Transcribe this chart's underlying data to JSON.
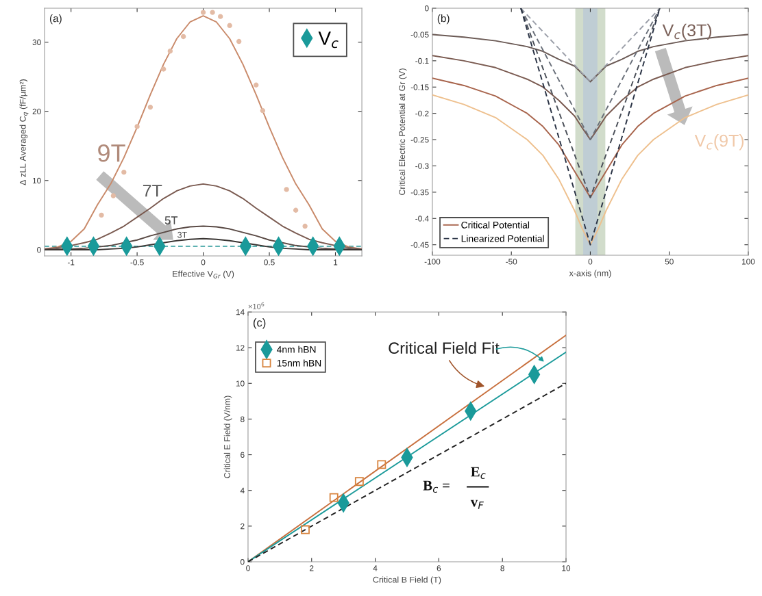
{
  "chart_data": [
    {
      "type": "line",
      "xlabel": "Effective V$_{Gr}$ (V)",
      "ylabel": "Δ zLL Averaged C$_{q}$ (fF/μm²)",
      "xlim": [
        -1.2,
        1.2
      ],
      "ylim": [
        -0.9,
        34.9
      ],
      "xticks": [
        -1,
        -0.5,
        0,
        0.5,
        1
      ],
      "yticks": [
        0,
        10,
        20,
        30
      ],
      "grid": false,
      "legend": "top right",
      "annotations": [
        "(a)",
        "9T",
        "7T",
        "5T",
        "3T"
      ],
      "ref_lines": [
        {
          "axis": "y",
          "value": 0.5,
          "label": null,
          "color": "#3aa0a0",
          "line_style": "dashed"
        }
      ],
      "series": [
        {
          "type": "scatter",
          "color": "#e3bba5",
          "marker": "circle",
          "x": [
            -0.77,
            -0.68,
            -0.6,
            -0.5,
            -0.4,
            -0.3,
            -0.25,
            -0.15,
            0,
            0.07,
            0.13,
            0.2,
            0.27,
            0.4,
            0.45,
            0.63,
            0.7,
            0.77
          ],
          "values": [
            5.0,
            7.8,
            11.2,
            17.8,
            20.6,
            26.1,
            28.7,
            30.8,
            34.3,
            34.3,
            33.7,
            32.4,
            30.1,
            23.8,
            20.1,
            8.7,
            5.7,
            3.4
          ]
        },
        {
          "type": "line",
          "color": "#c98a6a",
          "marker": "none",
          "x": [
            -1.2,
            -1.1,
            -1.0,
            -0.9,
            -0.8,
            -0.7,
            -0.6,
            -0.5,
            -0.4,
            -0.3,
            -0.2,
            -0.1,
            0,
            0.1,
            0.2,
            0.3,
            0.4,
            0.5,
            0.6,
            0.7,
            0.8,
            0.9,
            1.0,
            1.1,
            1.2
          ],
          "values": [
            0.1,
            0.4,
            1.2,
            3.0,
            6.5,
            9.5,
            13.3,
            17.7,
            22.4,
            26.8,
            30.5,
            32.9,
            33.8,
            32.9,
            30.5,
            26.8,
            22.4,
            17.7,
            13.3,
            9.5,
            6.5,
            3.0,
            1.2,
            0.4,
            0.1
          ]
        },
        {
          "type": "line",
          "color": "#7a5a50",
          "marker": "none",
          "x": [
            -1.2,
            -1.1,
            -1.0,
            -0.9,
            -0.8,
            -0.7,
            -0.6,
            -0.5,
            -0.4,
            -0.3,
            -0.2,
            -0.1,
            0,
            0.1,
            0.2,
            0.3,
            0.4,
            0.5,
            0.6,
            0.7,
            0.8,
            0.9,
            1.0,
            1.1,
            1.2
          ],
          "values": [
            0.1,
            0.3,
            0.6,
            1.0,
            1.5,
            2.4,
            3.4,
            4.7,
            6.0,
            7.4,
            8.5,
            9.2,
            9.5,
            9.2,
            8.5,
            7.4,
            6.0,
            4.7,
            3.4,
            2.4,
            1.5,
            1.0,
            0.6,
            0.3,
            0.1
          ]
        },
        {
          "type": "line",
          "color": "#5a4a45",
          "marker": "none",
          "x": [
            -1.2,
            -1.1,
            -1.0,
            -0.9,
            -0.8,
            -0.7,
            -0.6,
            -0.5,
            -0.4,
            -0.3,
            -0.2,
            -0.1,
            0,
            0.1,
            0.2,
            0.3,
            0.4,
            0.5,
            0.6,
            0.7,
            0.8,
            0.9,
            1.0,
            1.1,
            1.2
          ],
          "values": [
            0.0,
            0.1,
            0.1,
            0.2,
            0.4,
            0.6,
            1.0,
            1.4,
            2.0,
            2.5,
            3.0,
            3.3,
            3.4,
            3.3,
            3.0,
            2.5,
            2.0,
            1.4,
            1.0,
            0.6,
            0.4,
            0.2,
            0.1,
            0.1,
            0.0
          ]
        },
        {
          "type": "line",
          "color": "#3a3533",
          "marker": "none",
          "x": [
            -1.2,
            -1.1,
            -1.0,
            -0.9,
            -0.8,
            -0.7,
            -0.6,
            -0.5,
            -0.4,
            -0.3,
            -0.2,
            -0.1,
            0,
            0.1,
            0.2,
            0.3,
            0.4,
            0.5,
            0.6,
            0.7,
            0.8,
            0.9,
            1.0,
            1.1,
            1.2
          ],
          "values": [
            0.0,
            0.0,
            0.0,
            0.0,
            0.0,
            0.1,
            0.2,
            0.4,
            0.7,
            1.0,
            1.3,
            1.5,
            1.6,
            1.5,
            1.3,
            1.0,
            0.7,
            0.4,
            0.2,
            0.1,
            0.0,
            0.0,
            0.0,
            0.0,
            0.0
          ]
        },
        {
          "type": "scatter",
          "name": "V$_{c}$",
          "color": "#1a9a9a",
          "marker": "diamond",
          "x": [
            -1.03,
            -0.83,
            -0.58,
            -0.33,
            0.32,
            0.57,
            0.83,
            1.03
          ],
          "values": [
            0.5,
            0.5,
            0.5,
            0.5,
            0.5,
            0.5,
            0.5,
            0.5
          ]
        }
      ]
    },
    {
      "type": "line",
      "xlabel": "x-axis (nm)",
      "ylabel": "Critical Electric Potential at Gr (V)",
      "xlim": [
        -100,
        100
      ],
      "ylim": [
        -0.47,
        0
      ],
      "xticks": [
        -100,
        -50,
        0,
        50,
        100
      ],
      "yticks": [
        0,
        -0.05,
        -0.1,
        -0.15,
        -0.2,
        -0.25,
        -0.3,
        -0.35,
        -0.4,
        -0.45
      ],
      "grid": false,
      "legend": "bottom left",
      "annotations": [
        "(b)",
        "V$_{c}$(3T)",
        "V$_{c}$(9T)"
      ],
      "bands": [
        {
          "axis": "x",
          "from": -9.5,
          "to": 9.5,
          "label": null,
          "color": "#c9d6c2"
        },
        {
          "axis": "x",
          "from": -4.5,
          "to": 4.5,
          "label": null,
          "color": "#bccad6"
        }
      ],
      "series": [
        {
          "color": "#6b5a55",
          "line_style": "solid",
          "x": [
            -100,
            -80,
            -60,
            -40,
            -30,
            -20,
            -10,
            -5,
            0,
            5,
            10,
            20,
            30,
            40,
            60,
            80,
            100
          ],
          "values": [
            -0.05,
            -0.055,
            -0.062,
            -0.073,
            -0.082,
            -0.097,
            -0.11,
            -0.125,
            -0.14,
            -0.125,
            -0.11,
            -0.097,
            -0.082,
            -0.073,
            -0.062,
            -0.055,
            -0.05
          ]
        },
        {
          "color": "#7a5a50",
          "line_style": "solid",
          "x": [
            -100,
            -80,
            -60,
            -40,
            -30,
            -20,
            -10,
            -5,
            0,
            5,
            10,
            20,
            30,
            40,
            60,
            80,
            100
          ],
          "values": [
            -0.09,
            -0.1,
            -0.113,
            -0.135,
            -0.15,
            -0.175,
            -0.205,
            -0.228,
            -0.25,
            -0.228,
            -0.205,
            -0.175,
            -0.15,
            -0.135,
            -0.113,
            -0.1,
            -0.09
          ]
        },
        {
          "name": "Critical Potential",
          "color": "#a8644c",
          "line_style": "solid",
          "x": [
            -100,
            -80,
            -60,
            -40,
            -30,
            -20,
            -10,
            -5,
            0,
            5,
            10,
            20,
            30,
            40,
            60,
            80,
            100
          ],
          "values": [
            -0.133,
            -0.147,
            -0.167,
            -0.2,
            -0.225,
            -0.26,
            -0.31,
            -0.335,
            -0.36,
            -0.335,
            -0.31,
            -0.26,
            -0.225,
            -0.2,
            -0.167,
            -0.147,
            -0.133
          ]
        },
        {
          "color": "#eec08e",
          "line_style": "solid",
          "x": [
            -100,
            -80,
            -60,
            -40,
            -30,
            -20,
            -10,
            -5,
            0,
            5,
            10,
            20,
            30,
            40,
            60,
            80,
            100
          ],
          "values": [
            -0.165,
            -0.183,
            -0.208,
            -0.25,
            -0.28,
            -0.325,
            -0.385,
            -0.42,
            -0.45,
            -0.42,
            -0.385,
            -0.325,
            -0.28,
            -0.25,
            -0.208,
            -0.183,
            -0.165
          ]
        },
        {
          "color": "#9a9ea8",
          "line_style": "dashed",
          "x": [
            -44,
            0,
            44
          ],
          "values": [
            0,
            -0.14,
            0
          ]
        },
        {
          "color": "#6a707a",
          "line_style": "dashed",
          "x": [
            -44,
            0,
            44
          ],
          "values": [
            0,
            -0.25,
            0
          ]
        },
        {
          "color": "#4a4f58",
          "line_style": "dashed",
          "x": [
            -44,
            0,
            44
          ],
          "values": [
            0,
            -0.36,
            0
          ]
        },
        {
          "name": "Linearized Potential",
          "color": "#2a3345",
          "line_style": "dashed",
          "x": [
            -44,
            0,
            44
          ],
          "values": [
            0,
            -0.45,
            0
          ]
        }
      ]
    },
    {
      "type": "scatter",
      "xlabel": "Critical B Field (T)",
      "ylabel": "Critical E Field (V/nm)",
      "xlim": [
        0,
        10
      ],
      "ylim": [
        0,
        14
      ],
      "xticks": [
        0,
        2,
        4,
        6,
        8,
        10
      ],
      "yticks": [
        0,
        2,
        4,
        6,
        8,
        10,
        12,
        14
      ],
      "grid": false,
      "legend": "top left",
      "annotations": [
        "(c)",
        "×10$^{6}$",
        "Critical Field Fit",
        "B$_{c}$ =",
        "E$_{c}$",
        "v$_{F}$"
      ],
      "series": [
        {
          "type": "line",
          "color": "#c8703e",
          "marker": "none",
          "line_style": "solid",
          "x": [
            0,
            10
          ],
          "values": [
            0,
            12.7
          ]
        },
        {
          "type": "line",
          "color": "#1a9a9a",
          "marker": "none",
          "line_style": "solid",
          "x": [
            0,
            10
          ],
          "values": [
            0,
            11.75
          ]
        },
        {
          "type": "line",
          "color": "#222222",
          "marker": "none",
          "line_style": "dashed",
          "x": [
            0,
            10
          ],
          "values": [
            0,
            10
          ]
        },
        {
          "name": "4nm hBN",
          "color": "#1a9a9a",
          "marker": "diamond",
          "x": [
            3,
            5,
            7,
            9
          ],
          "values": [
            3.3,
            5.85,
            8.45,
            10.5
          ]
        },
        {
          "name": "15nm hBN",
          "color": "#d8843e",
          "marker": "square",
          "x": [
            1.8,
            2.7,
            3.5,
            4.2
          ],
          "values": [
            1.8,
            3.6,
            4.5,
            5.45
          ]
        }
      ]
    }
  ]
}
